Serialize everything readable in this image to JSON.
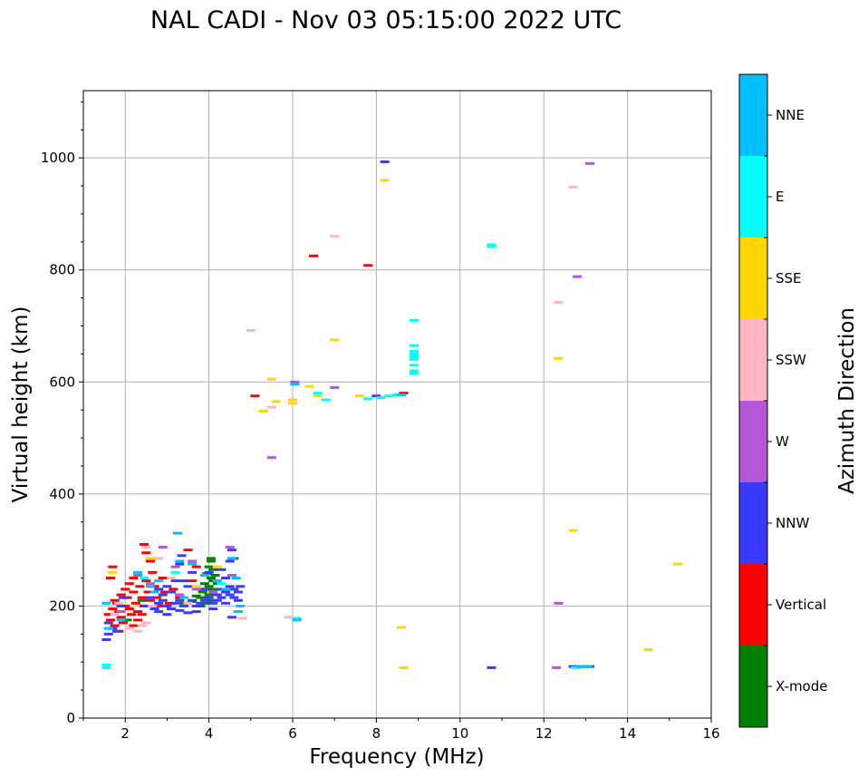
{
  "chart_data": {
    "type": "scatter",
    "title": "NAL CADI - Nov 03 05:15:00 2022 UTC",
    "xlabel": "Frequency (MHz)",
    "ylabel": "Virtual height (km)",
    "xlim": [
      1,
      16
    ],
    "ylim": [
      0,
      1120
    ],
    "xticks": [
      2,
      4,
      6,
      8,
      10,
      12,
      14,
      16
    ],
    "yticks": [
      0,
      200,
      400,
      600,
      800,
      1000
    ],
    "grid": true,
    "colorbar": {
      "label": "Azimuth Direction",
      "categories": [
        {
          "name": "X-mode",
          "color": "#008000"
        },
        {
          "name": "Vertical",
          "color": "#ff0000"
        },
        {
          "name": "NNW",
          "color": "#3a3aff"
        },
        {
          "name": "W",
          "color": "#b357d6"
        },
        {
          "name": "SSW",
          "color": "#ffb6c1"
        },
        {
          "name": "SSE",
          "color": "#ffd700"
        },
        {
          "name": "E",
          "color": "#00ffff"
        },
        {
          "name": "NNE",
          "color": "#00bfff"
        }
      ]
    },
    "series": [
      {
        "name": "X-mode",
        "points": [
          [
            4.05,
            285
          ],
          [
            4.05,
            280
          ],
          [
            4.0,
            270
          ],
          [
            4.1,
            265
          ],
          [
            3.95,
            258
          ],
          [
            4.05,
            250
          ],
          [
            4.1,
            245
          ],
          [
            3.9,
            240
          ],
          [
            4.0,
            235
          ],
          [
            4.1,
            230
          ],
          [
            3.85,
            225
          ],
          [
            4.0,
            220
          ],
          [
            3.8,
            215
          ],
          [
            4.05,
            210
          ],
          [
            3.95,
            205
          ],
          [
            3.8,
            200
          ],
          [
            3.7,
            218
          ],
          [
            3.6,
            208
          ],
          [
            4.15,
            255
          ],
          [
            4.2,
            240
          ],
          [
            3.3,
            220
          ],
          [
            3.4,
            205
          ],
          [
            2.05,
            175
          ],
          [
            2.4,
            210
          ]
        ]
      },
      {
        "name": "Vertical",
        "points": [
          [
            1.6,
            185
          ],
          [
            1.65,
            175
          ],
          [
            1.7,
            195
          ],
          [
            1.75,
            165
          ],
          [
            1.8,
            205
          ],
          [
            1.85,
            190
          ],
          [
            1.9,
            180
          ],
          [
            1.95,
            170
          ],
          [
            2.0,
            200
          ],
          [
            2.05,
            215
          ],
          [
            2.1,
            195
          ],
          [
            2.15,
            185
          ],
          [
            2.2,
            225
          ],
          [
            2.25,
            205
          ],
          [
            2.3,
            190
          ],
          [
            2.35,
            235
          ],
          [
            2.4,
            215
          ],
          [
            2.45,
            200
          ],
          [
            2.5,
            245
          ],
          [
            2.55,
            225
          ],
          [
            2.6,
            210
          ],
          [
            2.65,
            260
          ],
          [
            2.7,
            235
          ],
          [
            2.75,
            215
          ],
          [
            2.8,
            200
          ],
          [
            2.9,
            250
          ],
          [
            2.95,
            225
          ],
          [
            3.05,
            205
          ],
          [
            3.15,
            230
          ],
          [
            2.2,
            250
          ],
          [
            2.1,
            240
          ],
          [
            2.0,
            230
          ],
          [
            1.9,
            220
          ],
          [
            1.75,
            210
          ],
          [
            2.3,
            175
          ],
          [
            2.6,
            280
          ],
          [
            2.5,
            295
          ],
          [
            2.45,
            310
          ],
          [
            3.5,
            300
          ],
          [
            3.7,
            270
          ],
          [
            1.7,
            270
          ],
          [
            1.65,
            250
          ],
          [
            2.4,
            185
          ],
          [
            2.2,
            165
          ],
          [
            1.85,
            155
          ],
          [
            5.1,
            575
          ],
          [
            6.5,
            825
          ],
          [
            7.8,
            808
          ],
          [
            8.65,
            580
          ],
          [
            3.3,
            215
          ],
          [
            3.6,
            245
          ]
        ]
      },
      {
        "name": "NNW",
        "points": [
          [
            1.55,
            140
          ],
          [
            1.6,
            150
          ],
          [
            1.6,
            170
          ],
          [
            1.7,
            160
          ],
          [
            1.8,
            155
          ],
          [
            1.9,
            200
          ],
          [
            1.95,
            215
          ],
          [
            2.7,
            195
          ],
          [
            2.8,
            205
          ],
          [
            2.9,
            210
          ],
          [
            3.0,
            200
          ],
          [
            3.1,
            195
          ],
          [
            3.2,
            205
          ],
          [
            3.3,
            210
          ],
          [
            3.4,
            200
          ],
          [
            3.5,
            205
          ],
          [
            3.6,
            210
          ],
          [
            3.7,
            200
          ],
          [
            3.8,
            205
          ],
          [
            3.9,
            210
          ],
          [
            4.0,
            215
          ],
          [
            4.1,
            205
          ],
          [
            4.2,
            210
          ],
          [
            4.3,
            215
          ],
          [
            4.4,
            205
          ],
          [
            4.5,
            220
          ],
          [
            4.6,
            215
          ],
          [
            4.7,
            225
          ],
          [
            4.75,
            235
          ],
          [
            4.7,
            210
          ],
          [
            4.6,
            230
          ],
          [
            4.5,
            235
          ],
          [
            4.4,
            225
          ],
          [
            4.3,
            230
          ],
          [
            4.2,
            220
          ],
          [
            4.4,
            250
          ],
          [
            4.5,
            280
          ],
          [
            4.55,
            300
          ],
          [
            4.6,
            285
          ],
          [
            4.3,
            265
          ],
          [
            4.0,
            260
          ],
          [
            3.9,
            230
          ],
          [
            3.6,
            260
          ],
          [
            3.5,
            235
          ],
          [
            3.4,
            245
          ],
          [
            3.3,
            275
          ],
          [
            3.2,
            245
          ],
          [
            3.1,
            225
          ],
          [
            3.0,
            235
          ],
          [
            2.9,
            220
          ],
          [
            2.8,
            230
          ],
          [
            2.6,
            215
          ],
          [
            2.5,
            200
          ],
          [
            3.7,
            190
          ],
          [
            3.5,
            188
          ],
          [
            3.3,
            192
          ],
          [
            3.0,
            185
          ],
          [
            2.8,
            190
          ],
          [
            8.2,
            993
          ],
          [
            8.0,
            575
          ],
          [
            10.75,
            90
          ],
          [
            12.7,
            92
          ],
          [
            12.9,
            92
          ],
          [
            13.1,
            92
          ],
          [
            4.55,
            180
          ],
          [
            3.35,
            290
          ],
          [
            3.8,
            230
          ],
          [
            4.1,
            195
          ]
        ]
      },
      {
        "name": "W",
        "points": [
          [
            12.35,
            205
          ],
          [
            12.8,
            788
          ],
          [
            13.1,
            990
          ],
          [
            12.3,
            90
          ],
          [
            7.0,
            590
          ],
          [
            6.05,
            600
          ],
          [
            5.5,
            465
          ],
          [
            4.5,
            305
          ],
          [
            3.6,
            280
          ],
          [
            3.2,
            270
          ],
          [
            2.9,
            305
          ],
          [
            3.7,
            230
          ],
          [
            3.3,
            220
          ],
          [
            2.6,
            240
          ],
          [
            2.3,
            255
          ],
          [
            1.9,
            190
          ],
          [
            4.1,
            225
          ],
          [
            4.55,
            255
          ]
        ]
      },
      {
        "name": "SSW",
        "points": [
          [
            12.7,
            948
          ],
          [
            12.35,
            742
          ],
          [
            5.0,
            692
          ],
          [
            7.0,
            860
          ],
          [
            5.5,
            555
          ],
          [
            6.6,
            580
          ],
          [
            5.9,
            180
          ],
          [
            4.8,
            178
          ],
          [
            2.5,
            170
          ],
          [
            2.3,
            155
          ],
          [
            2.1,
            160
          ],
          [
            2.5,
            305
          ],
          [
            2.8,
            285
          ],
          [
            1.85,
            205
          ],
          [
            1.75,
            185
          ],
          [
            2.65,
            200
          ],
          [
            3.1,
            250
          ],
          [
            3.5,
            205
          ],
          [
            2.4,
            165
          ]
        ]
      },
      {
        "name": "SSE",
        "points": [
          [
            8.2,
            960
          ],
          [
            12.35,
            642
          ],
          [
            12.7,
            335
          ],
          [
            15.2,
            275
          ],
          [
            14.5,
            122
          ],
          [
            8.6,
            162
          ],
          [
            8.65,
            90
          ],
          [
            7.0,
            675
          ],
          [
            5.5,
            605
          ],
          [
            6.0,
            568
          ],
          [
            6.0,
            562
          ],
          [
            6.4,
            592
          ],
          [
            7.6,
            575
          ],
          [
            5.6,
            565
          ],
          [
            5.3,
            548
          ],
          [
            6.6,
            575
          ],
          [
            1.7,
            260
          ],
          [
            2.6,
            285
          ],
          [
            3.7,
            235
          ],
          [
            4.2,
            270
          ]
        ]
      },
      {
        "name": "E",
        "points": [
          [
            10.75,
            845
          ],
          [
            10.75,
            842
          ],
          [
            8.9,
            710
          ],
          [
            8.9,
            665
          ],
          [
            8.9,
            655
          ],
          [
            8.9,
            650
          ],
          [
            8.9,
            645
          ],
          [
            8.9,
            640
          ],
          [
            8.9,
            630
          ],
          [
            8.9,
            620
          ],
          [
            8.9,
            615
          ],
          [
            6.6,
            580
          ],
          [
            6.8,
            568
          ],
          [
            7.8,
            570
          ],
          [
            8.1,
            572
          ],
          [
            8.3,
            575
          ],
          [
            8.5,
            577
          ],
          [
            12.75,
            90
          ],
          [
            1.55,
            95
          ],
          [
            1.55,
            90
          ],
          [
            6.1,
            178
          ],
          [
            2.45,
            250
          ],
          [
            3.2,
            260
          ],
          [
            4.3,
            240
          ]
        ]
      },
      {
        "name": "NNE",
        "points": [
          [
            6.1,
            175
          ],
          [
            3.25,
            330
          ],
          [
            3.3,
            280
          ],
          [
            3.6,
            275
          ],
          [
            4.55,
            285
          ],
          [
            2.8,
            245
          ],
          [
            2.6,
            235
          ],
          [
            2.3,
            260
          ],
          [
            3.9,
            255
          ],
          [
            4.2,
            245
          ],
          [
            4.4,
            230
          ],
          [
            4.65,
            250
          ],
          [
            4.75,
            200
          ],
          [
            4.7,
            190
          ],
          [
            1.9,
            175
          ],
          [
            1.55,
            205
          ],
          [
            1.6,
            160
          ],
          [
            2.7,
            225
          ],
          [
            3.4,
            215
          ],
          [
            12.9,
            92
          ],
          [
            13.05,
            92
          ],
          [
            8.6,
            577
          ],
          [
            6.05,
            596
          ]
        ]
      }
    ]
  }
}
